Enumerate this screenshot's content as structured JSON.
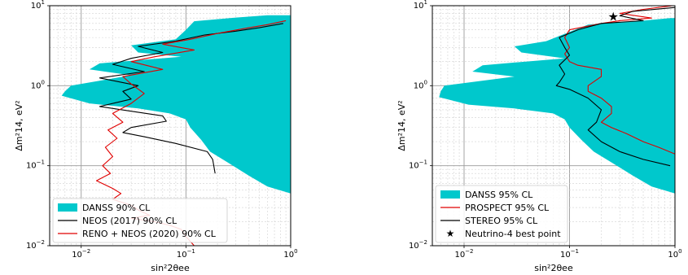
{
  "chart_data": [
    {
      "type": "area",
      "xlabel": "sin²2θee",
      "ylabel": "Δm²14, eV²",
      "xscale": "log",
      "yscale": "log",
      "xlim": [
        0.005,
        1
      ],
      "ylim": [
        0.01,
        10
      ],
      "grid": true,
      "legend_position": "lower-left",
      "x_ticks": [
        {
          "v": 0.01,
          "b": "10",
          "e": "−2"
        },
        {
          "v": 0.1,
          "b": "10",
          "e": "−1"
        },
        {
          "v": 1,
          "b": "10",
          "e": "0"
        }
      ],
      "y_ticks": [
        {
          "v": 0.01,
          "b": "10",
          "e": "−2"
        },
        {
          "v": 0.1,
          "b": "10",
          "e": "−1"
        },
        {
          "v": 1,
          "b": "10",
          "e": "0"
        },
        {
          "v": 10,
          "b": "10",
          "e": "1"
        }
      ],
      "series": [
        {
          "name": "DANSS 90% CL",
          "kind": "region",
          "color": "#00c8cc",
          "left_boundary": [
            [
              0.6,
              7.6
            ],
            [
              0.3,
              7.1
            ],
            [
              0.12,
              6.4
            ],
            [
              0.1,
              5.0
            ],
            [
              0.08,
              3.8
            ],
            [
              0.03,
              3.2
            ],
            [
              0.035,
              2.6
            ],
            [
              0.09,
              2.3
            ],
            [
              0.015,
              1.9
            ],
            [
              0.012,
              1.6
            ],
            [
              0.03,
              1.35
            ],
            [
              0.008,
              1.0
            ],
            [
              0.007,
              0.85
            ],
            [
              0.0065,
              0.75
            ],
            [
              0.012,
              0.6
            ],
            [
              0.035,
              0.52
            ],
            [
              0.07,
              0.45
            ],
            [
              0.1,
              0.38
            ],
            [
              0.11,
              0.3
            ],
            [
              0.14,
              0.21
            ],
            [
              0.17,
              0.15
            ],
            [
              0.25,
              0.11
            ],
            [
              0.4,
              0.075
            ],
            [
              0.6,
              0.055
            ],
            [
              1.0,
              0.045
            ]
          ],
          "right_edge": 1.0
        },
        {
          "name": "NEOS (2017) 90% CL",
          "kind": "line",
          "color": "#000000",
          "points": [
            [
              0.85,
              6.0
            ],
            [
              0.5,
              5.3
            ],
            [
              0.3,
              4.8
            ],
            [
              0.15,
              4.3
            ],
            [
              0.08,
              3.6
            ],
            [
              0.035,
              3.1
            ],
            [
              0.06,
              2.6
            ],
            [
              0.03,
              2.2
            ],
            [
              0.02,
              1.85
            ],
            [
              0.04,
              1.5
            ],
            [
              0.015,
              1.25
            ],
            [
              0.035,
              1.0
            ],
            [
              0.025,
              0.85
            ],
            [
              0.03,
              0.68
            ],
            [
              0.015,
              0.55
            ],
            [
              0.03,
              0.48
            ],
            [
              0.06,
              0.42
            ],
            [
              0.065,
              0.36
            ],
            [
              0.03,
              0.3
            ],
            [
              0.025,
              0.26
            ],
            [
              0.04,
              0.23
            ],
            [
              0.08,
              0.19
            ],
            [
              0.16,
              0.15
            ],
            [
              0.18,
              0.12
            ],
            [
              0.19,
              0.08
            ]
          ]
        },
        {
          "name": "RENO + NEOS (2020) 90% CL",
          "kind": "line",
          "color": "#e00000",
          "points": [
            [
              0.9,
              6.5
            ],
            [
              0.6,
              5.8
            ],
            [
              0.4,
              5.3
            ],
            [
              0.2,
              4.5
            ],
            [
              0.11,
              3.8
            ],
            [
              0.06,
              3.3
            ],
            [
              0.12,
              2.8
            ],
            [
              0.05,
              2.3
            ],
            [
              0.03,
              2.0
            ],
            [
              0.06,
              1.6
            ],
            [
              0.025,
              1.3
            ],
            [
              0.03,
              1.05
            ],
            [
              0.04,
              0.8
            ],
            [
              0.03,
              0.6
            ],
            [
              0.02,
              0.45
            ],
            [
              0.025,
              0.35
            ],
            [
              0.018,
              0.28
            ],
            [
              0.022,
              0.22
            ],
            [
              0.017,
              0.17
            ],
            [
              0.02,
              0.13
            ],
            [
              0.016,
              0.1
            ],
            [
              0.019,
              0.08
            ],
            [
              0.014,
              0.065
            ],
            [
              0.02,
              0.052
            ],
            [
              0.024,
              0.045
            ],
            [
              0.02,
              0.038
            ],
            [
              0.03,
              0.032
            ],
            [
              0.035,
              0.028
            ],
            [
              0.045,
              0.024
            ],
            [
              0.03,
              0.022
            ],
            [
              0.05,
              0.02
            ],
            [
              0.07,
              0.018
            ],
            [
              0.09,
              0.016
            ],
            [
              0.1,
              0.013
            ],
            [
              0.12,
              0.01
            ]
          ]
        }
      ]
    },
    {
      "type": "area",
      "xlabel": "sin²2θee",
      "ylabel": "Δm²14, eV²",
      "xscale": "log",
      "yscale": "log",
      "xlim": [
        0.005,
        1
      ],
      "ylim": [
        0.01,
        10
      ],
      "grid": true,
      "legend_position": "lower-left",
      "x_ticks": [
        {
          "v": 0.01,
          "b": "10",
          "e": "−2"
        },
        {
          "v": 0.1,
          "b": "10",
          "e": "−1"
        },
        {
          "v": 1,
          "b": "10",
          "e": "0"
        }
      ],
      "y_ticks": [
        {
          "v": 0.01,
          "b": "10",
          "e": "−2"
        },
        {
          "v": 0.1,
          "b": "10",
          "e": "−1"
        },
        {
          "v": 1,
          "b": "10",
          "e": "0"
        },
        {
          "v": 10,
          "b": "10",
          "e": "1"
        }
      ],
      "series": [
        {
          "name": "DANSS 95% CL",
          "kind": "region",
          "color": "#00c8cc",
          "left_boundary": [
            [
              0.9,
              7.0
            ],
            [
              0.5,
              6.5
            ],
            [
              0.15,
              5.8
            ],
            [
              0.1,
              4.7
            ],
            [
              0.06,
              3.6
            ],
            [
              0.03,
              3.1
            ],
            [
              0.035,
              2.6
            ],
            [
              0.09,
              2.2
            ],
            [
              0.015,
              1.8
            ],
            [
              0.012,
              1.5
            ],
            [
              0.03,
              1.3
            ],
            [
              0.0065,
              1.0
            ],
            [
              0.006,
              0.85
            ],
            [
              0.0058,
              0.72
            ],
            [
              0.011,
              0.58
            ],
            [
              0.03,
              0.52
            ],
            [
              0.07,
              0.45
            ],
            [
              0.09,
              0.38
            ],
            [
              0.1,
              0.3
            ],
            [
              0.13,
              0.21
            ],
            [
              0.17,
              0.15
            ],
            [
              0.25,
              0.11
            ],
            [
              0.4,
              0.075
            ],
            [
              0.6,
              0.055
            ],
            [
              1.0,
              0.045
            ]
          ],
          "right_edge": 1.0
        },
        {
          "name": "PROSPECT 95% CL",
          "kind": "line",
          "color": "#e00000",
          "points": [
            [
              0.95,
              10.0
            ],
            [
              0.5,
              9.0
            ],
            [
              0.3,
              8.0
            ],
            [
              0.6,
              7.0
            ],
            [
              0.3,
              6.5
            ],
            [
              0.2,
              6.0
            ],
            [
              0.1,
              5.0
            ],
            [
              0.09,
              4.0
            ],
            [
              0.1,
              3.0
            ],
            [
              0.09,
              2.5
            ],
            [
              0.1,
              2.0
            ],
            [
              0.12,
              1.8
            ],
            [
              0.2,
              1.6
            ],
            [
              0.2,
              1.3
            ],
            [
              0.15,
              1.0
            ],
            [
              0.15,
              0.85
            ],
            [
              0.2,
              0.7
            ],
            [
              0.25,
              0.55
            ],
            [
              0.25,
              0.45
            ],
            [
              0.2,
              0.35
            ],
            [
              0.25,
              0.3
            ],
            [
              0.35,
              0.25
            ],
            [
              0.5,
              0.2
            ],
            [
              0.7,
              0.17
            ],
            [
              1.0,
              0.14
            ]
          ]
        },
        {
          "name": "STEREO 95% CL",
          "kind": "line",
          "color": "#000000",
          "points": [
            [
              1.0,
              9.5
            ],
            [
              0.4,
              8.5
            ],
            [
              0.3,
              7.5
            ],
            [
              0.5,
              6.5
            ],
            [
              0.2,
              6.0
            ],
            [
              0.12,
              5.0
            ],
            [
              0.08,
              4.0
            ],
            [
              0.09,
              3.0
            ],
            [
              0.1,
              2.4
            ],
            [
              0.08,
              1.8
            ],
            [
              0.09,
              1.4
            ],
            [
              0.08,
              1.1
            ],
            [
              0.075,
              1.0
            ],
            [
              0.1,
              0.9
            ],
            [
              0.15,
              0.7
            ],
            [
              0.2,
              0.5
            ],
            [
              0.18,
              0.35
            ],
            [
              0.15,
              0.28
            ],
            [
              0.2,
              0.2
            ],
            [
              0.3,
              0.15
            ],
            [
              0.5,
              0.12
            ],
            [
              0.9,
              0.1
            ]
          ]
        },
        {
          "name": "Neutrino-4 best point",
          "kind": "point",
          "color": "#000000",
          "points": [
            [
              0.26,
              7.3
            ]
          ]
        }
      ]
    }
  ]
}
